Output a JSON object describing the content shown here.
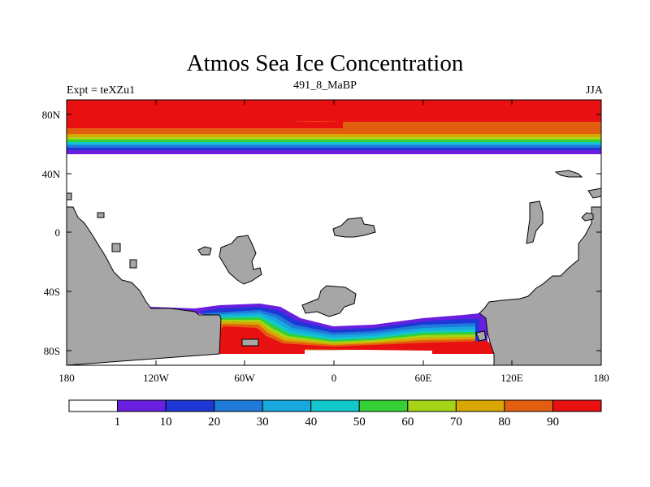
{
  "title": "Atmos Sea Ice Concentration",
  "subtitle_left": "Expt = teXZu1",
  "subtitle_center": "491_8_MaBP",
  "subtitle_right": "JJA",
  "map": {
    "projection": "cylindrical equidistant",
    "lon_range": [
      -180,
      180
    ],
    "lat_range": [
      -90,
      90
    ],
    "lat_labels": [
      "80N",
      "40N",
      "0",
      "40S",
      "80S"
    ],
    "lon_labels": [
      "180",
      "120W",
      "60W",
      "0",
      "60E",
      "120E",
      "180"
    ],
    "land_color": "#a6a6a6"
  },
  "colorbar": {
    "colors": [
      "#ffffff",
      "#6a1fe0",
      "#1f37d6",
      "#1f7ad9",
      "#18a8e0",
      "#12c8cc",
      "#35d035",
      "#a6d418",
      "#d9a800",
      "#e35f10",
      "#e81010"
    ],
    "labels": [
      "1",
      "10",
      "20",
      "30",
      "40",
      "50",
      "60",
      "70",
      "80",
      "90"
    ]
  }
}
